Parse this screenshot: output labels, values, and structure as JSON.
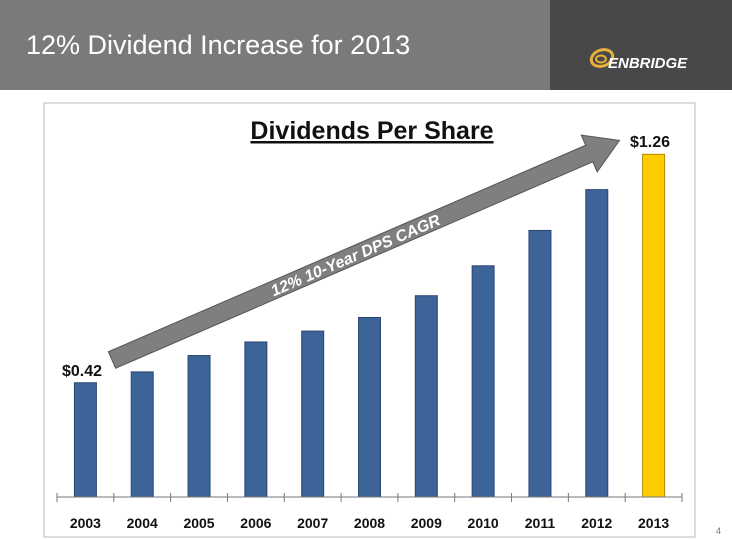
{
  "header": {
    "title": "12% Dividend Increase for 2013",
    "logo_text": "ENBRIDGE"
  },
  "page_number": "4",
  "colors": {
    "bar": "#3d6499",
    "highlight": "#ffcc00",
    "arrow": "#7f7f7f"
  },
  "chart_data": {
    "type": "bar",
    "title": "Dividends Per Share",
    "categories": [
      "2003",
      "2004",
      "2005",
      "2006",
      "2007",
      "2008",
      "2009",
      "2010",
      "2011",
      "2012",
      "2013"
    ],
    "values": [
      0.42,
      0.46,
      0.52,
      0.57,
      0.61,
      0.66,
      0.74,
      0.85,
      0.98,
      1.13,
      1.26
    ],
    "data_labels": {
      "first": "$0.42",
      "last": "$1.26"
    },
    "annotation": "12% 10-Year DPS CAGR",
    "xlabel": "",
    "ylabel": "",
    "ylim": [
      0,
      1.3
    ],
    "grid": false
  }
}
